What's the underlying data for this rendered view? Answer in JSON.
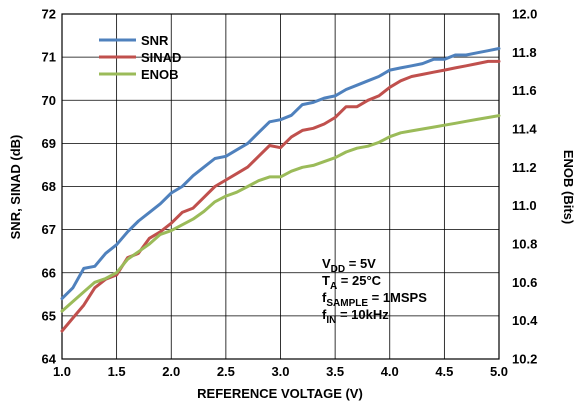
{
  "chart_data": {
    "type": "line",
    "xlabel": "REFERENCE VOLTAGE (V)",
    "ylabel_left": "SNR, SINAD (dB)",
    "ylabel_right": "ENOB (Bits)",
    "xlim": [
      1.0,
      5.0
    ],
    "ylim_left": [
      64,
      72
    ],
    "ylim_right": [
      10.2,
      12.0
    ],
    "x_ticks": [
      "1.0",
      "1.5",
      "2.0",
      "2.5",
      "3.0",
      "3.5",
      "4.0",
      "4.5",
      "5.0"
    ],
    "y_ticks_left": [
      "64",
      "65",
      "66",
      "67",
      "68",
      "69",
      "70",
      "71",
      "72"
    ],
    "y_ticks_right": [
      "10.2",
      "10.4",
      "10.6",
      "10.8",
      "11.0",
      "11.2",
      "11.4",
      "11.6",
      "11.8",
      "12.0"
    ],
    "grid": true,
    "legend_position": "top-left",
    "series": [
      {
        "name": "SNR",
        "axis": "left",
        "color": "#4f81bd",
        "x": [
          1.0,
          1.1,
          1.2,
          1.3,
          1.4,
          1.5,
          1.6,
          1.7,
          1.8,
          1.9,
          2.0,
          2.1,
          2.2,
          2.3,
          2.4,
          2.5,
          2.6,
          2.7,
          2.8,
          2.9,
          3.0,
          3.1,
          3.2,
          3.3,
          3.4,
          3.5,
          3.6,
          3.7,
          3.8,
          3.9,
          4.0,
          4.1,
          4.2,
          4.3,
          4.4,
          4.5,
          4.6,
          4.7,
          4.8,
          4.9,
          5.0
        ],
        "values": [
          65.4,
          65.65,
          66.1,
          66.15,
          66.45,
          66.65,
          66.95,
          67.2,
          67.4,
          67.6,
          67.85,
          68.0,
          68.25,
          68.45,
          68.65,
          68.7,
          68.85,
          69.0,
          69.25,
          69.5,
          69.55,
          69.65,
          69.9,
          69.95,
          70.05,
          70.1,
          70.25,
          70.35,
          70.45,
          70.55,
          70.7,
          70.75,
          70.8,
          70.85,
          70.95,
          70.95,
          71.05,
          71.05,
          71.1,
          71.15,
          71.2
        ]
      },
      {
        "name": "SINAD",
        "axis": "left",
        "color": "#c0504d",
        "x": [
          1.0,
          1.1,
          1.2,
          1.3,
          1.4,
          1.5,
          1.6,
          1.7,
          1.8,
          1.9,
          2.0,
          2.1,
          2.2,
          2.3,
          2.4,
          2.5,
          2.6,
          2.7,
          2.8,
          2.9,
          3.0,
          3.1,
          3.2,
          3.3,
          3.4,
          3.5,
          3.6,
          3.7,
          3.8,
          3.9,
          4.0,
          4.1,
          4.2,
          4.3,
          4.4,
          4.5,
          4.6,
          4.7,
          4.8,
          4.9,
          5.0
        ],
        "values": [
          64.65,
          64.95,
          65.25,
          65.65,
          65.85,
          65.95,
          66.35,
          66.45,
          66.8,
          66.95,
          67.15,
          67.4,
          67.5,
          67.75,
          68.0,
          68.15,
          68.3,
          68.45,
          68.7,
          68.95,
          68.9,
          69.15,
          69.3,
          69.35,
          69.45,
          69.6,
          69.85,
          69.85,
          70.0,
          70.1,
          70.3,
          70.45,
          70.55,
          70.6,
          70.65,
          70.7,
          70.75,
          70.8,
          70.85,
          70.9,
          70.9
        ]
      },
      {
        "name": "ENOB",
        "axis": "right",
        "color": "#9bbb59",
        "x": [
          1.0,
          1.1,
          1.2,
          1.3,
          1.4,
          1.5,
          1.6,
          1.7,
          1.8,
          1.9,
          2.0,
          2.1,
          2.2,
          2.3,
          2.4,
          2.5,
          2.6,
          2.7,
          2.8,
          2.9,
          3.0,
          3.1,
          3.2,
          3.3,
          3.4,
          3.5,
          3.6,
          3.7,
          3.8,
          3.9,
          4.0,
          4.1,
          4.2,
          4.3,
          4.4,
          4.5,
          4.6,
          4.7,
          4.8,
          4.9,
          5.0
        ],
        "values": [
          10.45,
          10.5,
          10.55,
          10.6,
          10.62,
          10.65,
          10.72,
          10.76,
          10.8,
          10.85,
          10.87,
          10.9,
          10.93,
          10.97,
          11.02,
          11.05,
          11.07,
          11.1,
          11.13,
          11.15,
          11.15,
          11.18,
          11.2,
          11.21,
          11.23,
          11.25,
          11.28,
          11.3,
          11.31,
          11.33,
          11.36,
          11.38,
          11.39,
          11.4,
          11.41,
          11.42,
          11.43,
          11.44,
          11.45,
          11.46,
          11.47
        ]
      }
    ],
    "conditions": [
      {
        "main": "V",
        "sub": "DD",
        "rest": " = 5V"
      },
      {
        "main": "T",
        "sub": "A",
        "rest": " = 25°C"
      },
      {
        "main": "f",
        "sub": "SAMPLE",
        "rest": " = 1MSPS"
      },
      {
        "main": "f",
        "sub": "IN",
        "rest": " = 10kHz"
      }
    ]
  }
}
